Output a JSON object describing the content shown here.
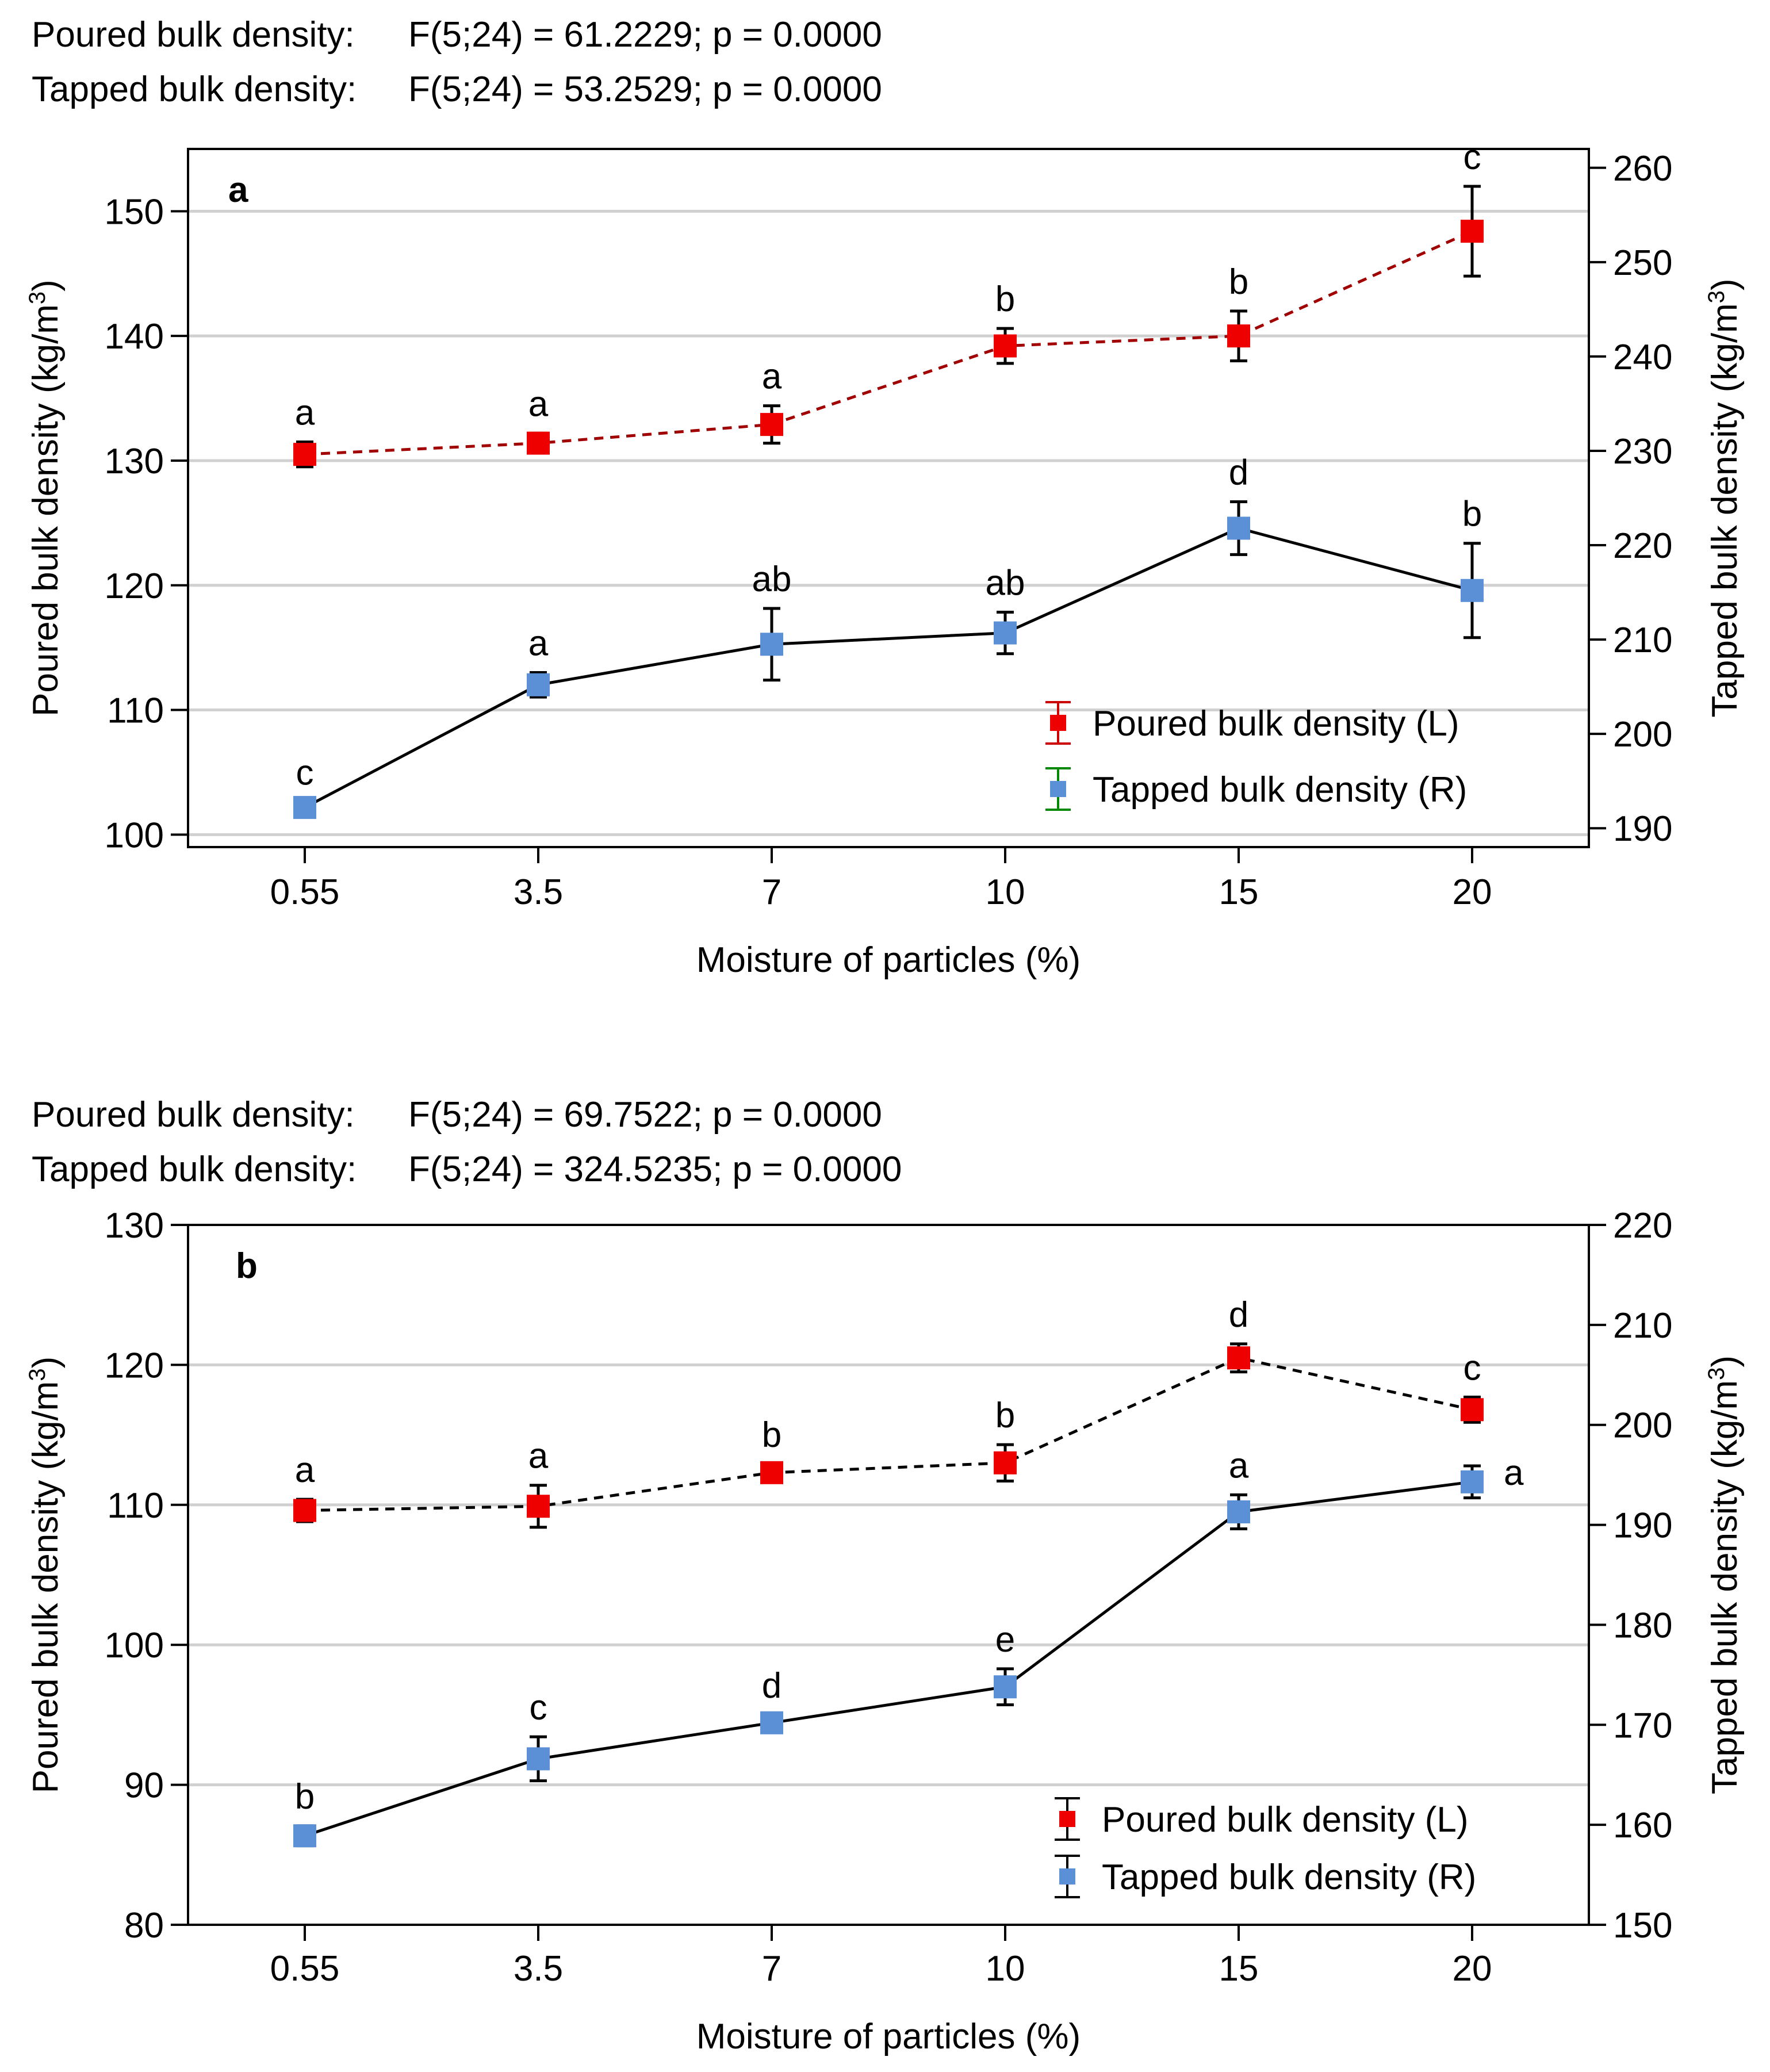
{
  "figure": {
    "panels": [
      {
        "id": "a",
        "stats": [
          {
            "label": "Poured bulk density:",
            "value": "F(5;24) = 61.2229; p = 0.0000"
          },
          {
            "label": "Tapped bulk density:",
            "value": "F(5;24) = 53.2529; p = 0.0000"
          }
        ],
        "legend": [
          "Poured bulk density (L)",
          "Tapped bulk density (R)"
        ]
      },
      {
        "id": "b",
        "stats": [
          {
            "label": "Poured bulk density:",
            "value": "F(5;24) = 69.7522; p = 0.0000"
          },
          {
            "label": "Tapped bulk density:",
            "value": "F(5;24) = 324.5235; p = 0.0000"
          }
        ],
        "legend": [
          "Poured bulk density (L)",
          "Tapped bulk density (R)"
        ]
      }
    ]
  },
  "colors": {
    "poured": "#ee0000",
    "tapped": "#5b8fd6",
    "poured_line_a": "#a00000",
    "grid": "#d0d0d0",
    "legend_err_tapped_a": "#008800"
  },
  "chart_data": [
    {
      "type": "line",
      "panel_label": "a",
      "title": "",
      "categories": [
        "0.55",
        "3.5",
        "7",
        "10",
        "15",
        "20"
      ],
      "xlabel": "Moisture of particles (%)",
      "ylabel": "Poured bulk density (kg/m3)",
      "ylabel_right": "Tapped bulk density (kg/m3)",
      "ylim": [
        99,
        155
      ],
      "ylim_right": [
        188,
        262
      ],
      "yticks": [
        100,
        110,
        120,
        130,
        140,
        150
      ],
      "yticks_right": [
        190,
        200,
        210,
        220,
        230,
        240,
        250,
        260
      ],
      "grid": true,
      "legend_position": "bottom-right",
      "series": [
        {
          "name": "Poured bulk density (L)",
          "axis": "left",
          "line_style": "dashed",
          "values": [
            130.5,
            131.4,
            132.9,
            139.2,
            140.0,
            148.4
          ],
          "errors": [
            1.0,
            0.8,
            1.5,
            1.4,
            2.0,
            3.6
          ],
          "letters": [
            "a",
            "a",
            "a",
            "b",
            "b",
            "c"
          ]
        },
        {
          "name": "Tapped bulk density (R)",
          "axis": "right",
          "line_style": "solid",
          "values": [
            192.2,
            205.2,
            209.5,
            210.7,
            221.8,
            215.2
          ],
          "errors": [
            0.6,
            1.3,
            3.8,
            2.2,
            2.8,
            5.0
          ],
          "letters": [
            "c",
            "a",
            "ab",
            "ab",
            "d",
            "b"
          ]
        }
      ]
    },
    {
      "type": "line",
      "panel_label": "b",
      "title": "",
      "categories": [
        "0.55",
        "3.5",
        "7",
        "10",
        "15",
        "20"
      ],
      "xlabel": "Moisture of particles (%)",
      "ylabel": "Poured bulk density (kg/m3)",
      "ylabel_right": "Tapped bulk density (kg/m3)",
      "ylim": [
        80,
        130
      ],
      "ylim_right": [
        150,
        220
      ],
      "yticks": [
        80,
        90,
        100,
        110,
        120,
        130
      ],
      "yticks_right": [
        150,
        160,
        170,
        180,
        190,
        200,
        210,
        220
      ],
      "grid": true,
      "legend_position": "bottom-right",
      "series": [
        {
          "name": "Poured bulk density (L)",
          "axis": "left",
          "line_style": "dashed",
          "values": [
            109.6,
            109.9,
            112.3,
            113.0,
            120.5,
            116.8
          ],
          "errors": [
            0.8,
            1.5,
            0.6,
            1.3,
            1.0,
            0.9
          ],
          "letters": [
            "a",
            "a",
            "b",
            "b",
            "d",
            "c"
          ]
        },
        {
          "name": "Tapped bulk density (R)",
          "axis": "right",
          "line_style": "solid",
          "values": [
            158.9,
            166.6,
            170.2,
            173.8,
            191.3,
            194.3
          ],
          "errors": [
            1.0,
            2.2,
            0.8,
            1.8,
            1.7,
            1.6
          ],
          "letters": [
            "b",
            "c",
            "d",
            "e",
            "a",
            "a"
          ]
        }
      ]
    }
  ]
}
